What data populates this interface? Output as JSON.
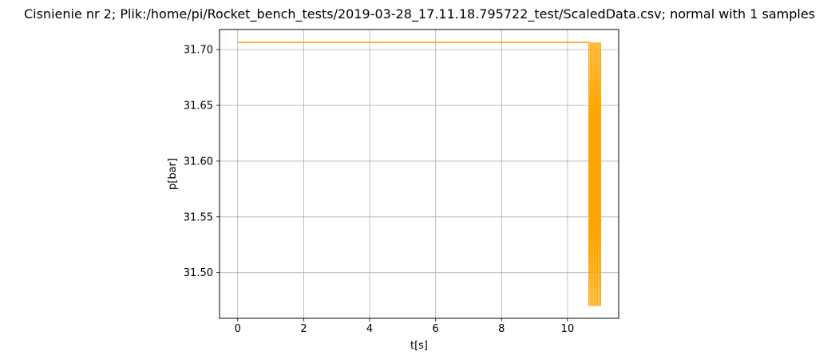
{
  "chart_data": {
    "type": "line",
    "title": "Cisnienie nr 2; Plik:/home/pi/Rocket_bench_tests/2019-03-28_17.11.18.795722_test/ScaledData.csv; normal with 1 samples",
    "xlabel": "t[s]",
    "ylabel": "p[bar]",
    "xlim": [
      -0.55,
      11.55
    ],
    "ylim": [
      31.459,
      31.718
    ],
    "xticks": [
      0,
      2,
      4,
      6,
      8,
      10
    ],
    "xtick_labels": [
      "0",
      "2",
      "4",
      "6",
      "8",
      "10"
    ],
    "yticks": [
      31.5,
      31.55,
      31.6,
      31.65,
      31.7
    ],
    "ytick_labels": [
      "31.50",
      "31.55",
      "31.60",
      "31.65",
      "31.70"
    ],
    "grid": true,
    "color": "#FFA500",
    "series": [
      {
        "x": [
          0.0,
          10.65,
          10.65,
          10.7,
          10.7,
          10.75,
          10.75,
          10.8,
          10.8,
          10.85,
          10.85,
          10.9,
          10.9,
          10.95,
          10.95,
          11.0,
          11.0
        ],
        "y": [
          31.7065,
          31.7065,
          31.47,
          31.7065,
          31.47,
          31.7065,
          31.47,
          31.7065,
          31.47,
          31.7065,
          31.47,
          31.7065,
          31.47,
          31.7065,
          31.47,
          31.7065,
          31.47
        ]
      }
    ]
  }
}
